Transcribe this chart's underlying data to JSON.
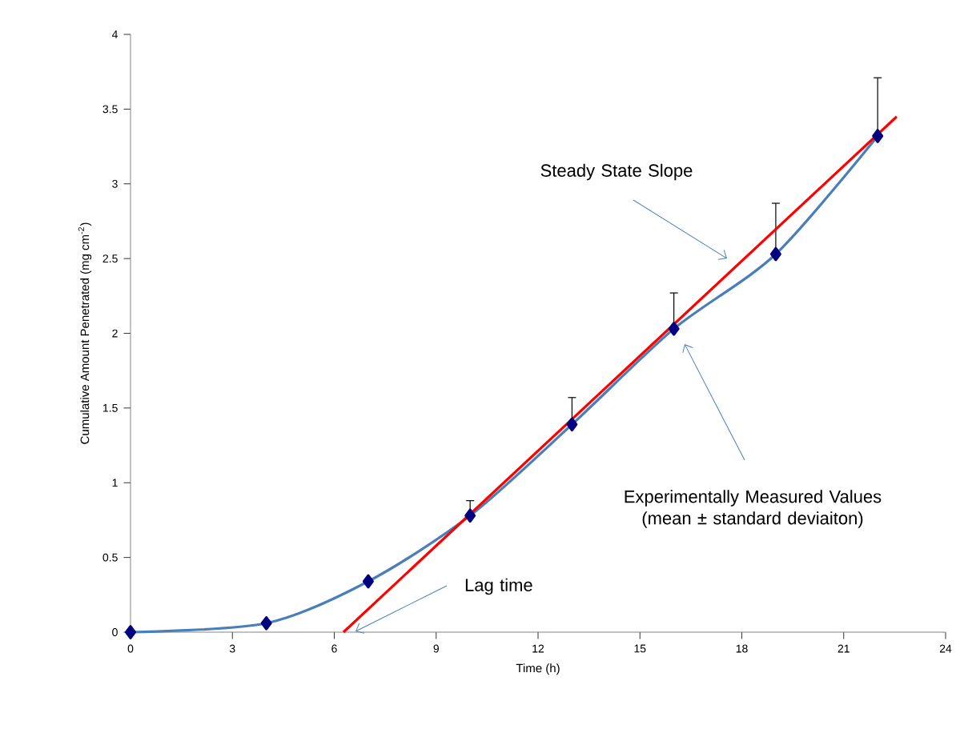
{
  "chart_data": {
    "type": "line",
    "xlabel": "Time (h)",
    "ylabel": "Cumulative Amount Penetrated (mg cm$^{-2}$)",
    "xlim": [
      0,
      24
    ],
    "ylim": [
      0,
      4
    ],
    "xticks": [
      0,
      3,
      6,
      9,
      12,
      15,
      18,
      21,
      24
    ],
    "yticks": [
      0,
      0.5,
      1,
      1.5,
      2,
      2.5,
      3,
      3.5,
      4
    ],
    "grid": false,
    "series": [
      {
        "color": "#4a7ebb",
        "marker": "diamond",
        "x": [
          0,
          4,
          7,
          10,
          13,
          16,
          19,
          22
        ],
        "values": [
          0,
          0.06,
          0.34,
          0.78,
          1.39,
          2.03,
          2.53,
          3.32
        ],
        "errors": [
          null,
          null,
          null,
          [
            0.78,
            0.88
          ],
          [
            1.39,
            1.57
          ],
          [
            2.03,
            2.27
          ],
          [
            2.53,
            2.87
          ],
          [
            3.32,
            3.71
          ]
        ]
      },
      {
        "color": "#ff0000",
        "marker": "none",
        "x": [
          6.27,
          22.56
        ],
        "values": [
          0,
          3.45
        ]
      }
    ],
    "annotations": [
      "Steady State Slope",
      "Experimentally Measured Values\n(mean ± standard deviaiton)",
      "Lag time"
    ]
  }
}
